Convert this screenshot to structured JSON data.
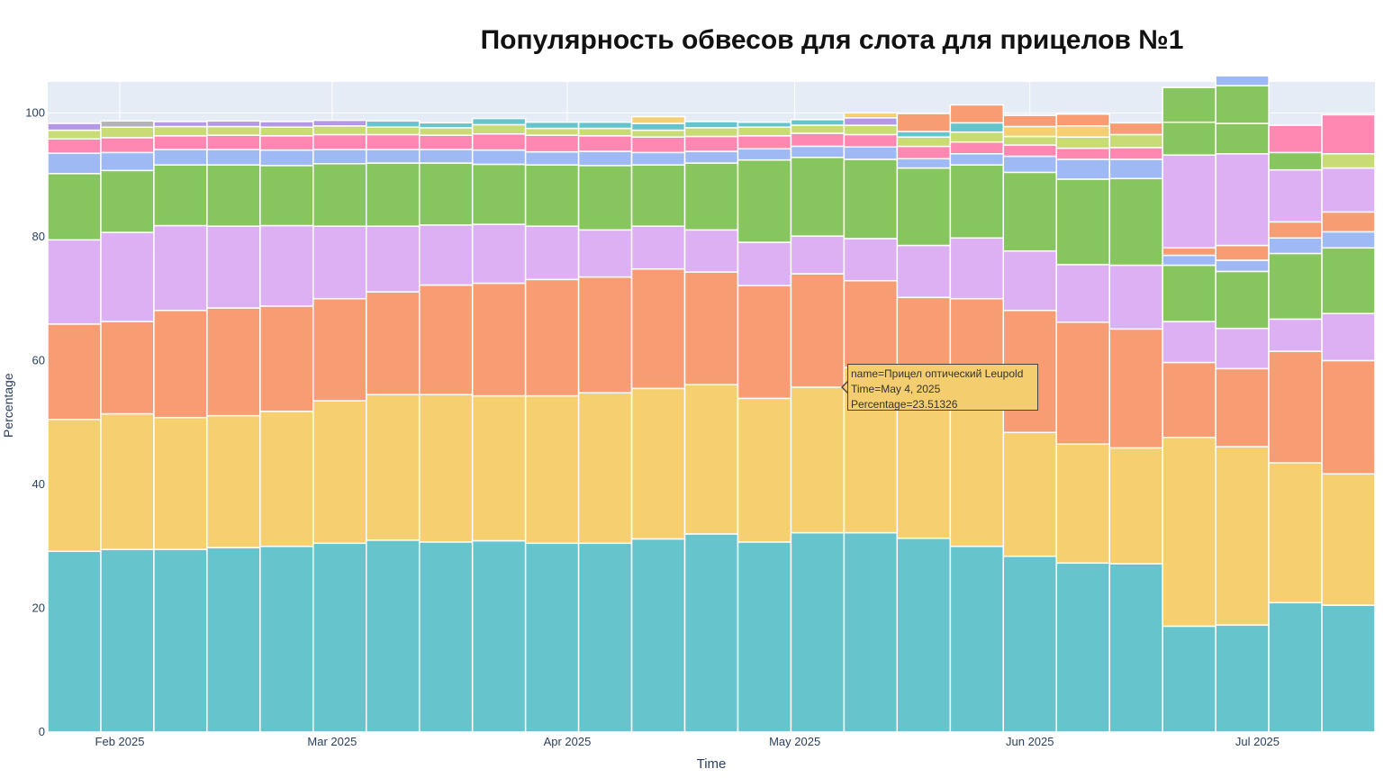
{
  "chart_data": {
    "type": "bar",
    "stacked": true,
    "title": "Популярность обвесов для слота для прицелов №1",
    "xlabel": "Time",
    "ylabel": "Percentage",
    "ylim": [
      0,
      105
    ],
    "yticks": [
      0,
      20,
      40,
      60,
      80,
      100
    ],
    "x": [
      "2025-01-26",
      "2025-02-02",
      "2025-02-09",
      "2025-02-16",
      "2025-02-23",
      "2025-03-02",
      "2025-03-09",
      "2025-03-16",
      "2025-03-23",
      "2025-03-30",
      "2025-04-06",
      "2025-04-13",
      "2025-04-20",
      "2025-04-27",
      "2025-05-04",
      "2025-05-11",
      "2025-05-18",
      "2025-05-25",
      "2025-06-01",
      "2025-06-08",
      "2025-06-15",
      "2025-06-22",
      "2025-06-29",
      "2025-07-06",
      "2025-07-13"
    ],
    "xticks": [
      {
        "date": "2025-02-01",
        "label": "Feb 2025"
      },
      {
        "date": "2025-03-01",
        "label": "Mar 2025"
      },
      {
        "date": "2025-04-01",
        "label": "Apr 2025"
      },
      {
        "date": "2025-05-01",
        "label": "May 2025"
      },
      {
        "date": "2025-06-01",
        "label": "Jun 2025"
      },
      {
        "date": "2025-07-01",
        "label": "Jul 2025"
      }
    ],
    "grid": true,
    "background": "#e5ecf6",
    "series": [
      {
        "color": "#66c5cc",
        "values": [
          29.2,
          29.5,
          29.5,
          29.8,
          30.0,
          30.5,
          31.0,
          30.7,
          30.9,
          30.5,
          30.5,
          31.2,
          32.0,
          30.7,
          32.2,
          32.2,
          31.3,
          30.0,
          28.4,
          27.3,
          27.2,
          17.1,
          17.3,
          20.9,
          20.5
        ]
      },
      {
        "color": "#f6cf71",
        "values": [
          21.3,
          21.9,
          21.3,
          21.3,
          21.8,
          23.0,
          23.5,
          23.8,
          23.4,
          23.8,
          24.3,
          24.3,
          24.1,
          23.2,
          23.51326,
          26.7,
          26.0,
          26.2,
          20.0,
          19.2,
          18.7,
          30.5,
          28.8,
          22.6,
          21.2
        ]
      },
      {
        "color": "#f89c74",
        "values": [
          15.4,
          14.9,
          17.3,
          17.4,
          17.0,
          16.5,
          16.6,
          17.7,
          18.2,
          18.8,
          18.7,
          19.3,
          18.2,
          18.2,
          18.3,
          14.0,
          12.9,
          13.8,
          19.7,
          19.7,
          19.2,
          12.1,
          12.6,
          18.0,
          18.3
        ]
      },
      {
        "color": "#dcb0f2",
        "values": [
          13.6,
          14.4,
          13.7,
          13.2,
          13.0,
          11.7,
          10.6,
          9.7,
          9.5,
          8.6,
          7.6,
          6.9,
          6.8,
          7.0,
          6.1,
          6.8,
          8.4,
          9.8,
          9.6,
          9.3,
          10.3,
          6.6,
          6.5,
          5.2,
          7.6
        ]
      },
      {
        "color": "#87c55f",
        "values": [
          10.7,
          10.0,
          9.8,
          9.9,
          9.7,
          10.1,
          10.2,
          10.0,
          9.7,
          9.9,
          10.4,
          9.9,
          10.8,
          13.3,
          12.7,
          12.8,
          12.5,
          11.8,
          12.7,
          13.8,
          14.0,
          9.1,
          9.2,
          10.6,
          10.6
        ]
      },
      {
        "color": "#9eb9f3",
        "values": [
          3.3,
          2.9,
          2.5,
          2.5,
          2.5,
          2.3,
          2.2,
          2.2,
          2.3,
          2.1,
          2.3,
          2.0,
          1.9,
          1.8,
          1.8,
          2.0,
          1.5,
          1.8,
          2.6,
          3.2,
          3.1,
          1.6,
          1.8,
          2.5,
          2.6
        ]
      },
      {
        "color": "#fe88b1",
        "values": [
          2.3,
          2.4,
          2.2,
          2.3,
          2.3,
          2.4,
          2.4,
          2.3,
          2.6,
          2.7,
          2.5,
          2.5,
          2.4,
          2.1,
          2.1,
          2.0,
          2.0,
          1.9,
          1.8,
          1.8,
          1.9,
          0,
          0,
          0,
          0
        ]
      },
      {
        "color": "#f89c74",
        "values": [
          0,
          0,
          0,
          0,
          0,
          0,
          0,
          0,
          0,
          0,
          0,
          0,
          0,
          0,
          0,
          0,
          0,
          0,
          0,
          0,
          0,
          1.2,
          2.4,
          2.6,
          3.2
        ]
      },
      {
        "color": "#dcb0f2",
        "values": [
          0,
          0,
          0,
          0,
          0,
          0,
          0,
          0,
          0,
          0,
          0,
          0,
          0,
          0,
          0,
          0,
          0,
          0,
          0,
          0,
          0,
          15.0,
          14.8,
          8.4,
          7.1
        ]
      },
      {
        "color": "#87c55f",
        "values": [
          0,
          0,
          0,
          0,
          0,
          0,
          0,
          0,
          0,
          0,
          0,
          0,
          0,
          0,
          0,
          0,
          0,
          0,
          0,
          0,
          0,
          5.3,
          4.9,
          2.8,
          0
        ]
      },
      {
        "color": "#c9db74",
        "values": [
          1.4,
          1.7,
          1.5,
          1.4,
          1.4,
          1.4,
          1.2,
          1.2,
          1.5,
          1.1,
          1.2,
          1.1,
          1.4,
          1.4,
          1.3,
          1.5,
          1.5,
          1.6,
          1.4,
          1.8,
          2.1,
          0,
          0,
          0,
          2.3
        ]
      },
      {
        "color": "#fe88b1",
        "values": [
          0,
          0,
          0,
          0,
          0,
          0,
          0,
          0,
          0,
          0,
          0,
          0,
          0,
          0,
          0,
          0,
          0,
          0,
          0,
          0,
          0,
          0,
          0,
          0,
          6.3
        ]
      },
      {
        "color": "#66c5cc",
        "values": [
          0,
          0,
          0,
          0,
          0,
          0,
          1.0,
          0.8,
          1.0,
          1.0,
          1.0,
          1.1,
          1.0,
          0.8,
          0.9,
          0,
          0.9,
          1.5,
          0,
          0,
          0,
          0,
          0,
          0,
          0
        ]
      },
      {
        "color": "#b497e7",
        "values": [
          1.1,
          0,
          0.8,
          0.9,
          0.9,
          0.9,
          0,
          0,
          0,
          0,
          0,
          0,
          0,
          0,
          0,
          1.2,
          0,
          0,
          0,
          0,
          0,
          0,
          0,
          0,
          0
        ]
      },
      {
        "color": "#b3b3b3",
        "values": [
          0,
          1.0,
          0,
          0,
          0,
          0,
          0,
          0,
          0,
          0,
          0,
          0,
          0,
          0,
          0,
          0,
          0,
          0,
          0,
          0,
          0,
          0,
          0,
          0,
          0
        ]
      },
      {
        "color": "#f6cf71",
        "values": [
          0,
          0,
          0,
          0,
          0,
          0,
          0,
          0,
          0,
          0,
          0,
          1.1,
          0,
          0,
          0,
          0.8,
          0,
          0,
          1.6,
          1.8,
          0,
          0,
          0,
          0,
          0
        ]
      },
      {
        "color": "#f89c74",
        "values": [
          0,
          0,
          0,
          0,
          0,
          0,
          0,
          0,
          0,
          0,
          0,
          0,
          0,
          0,
          0,
          0,
          2.9,
          2.9,
          1.8,
          1.9,
          1.9,
          0,
          0,
          0,
          0
        ]
      },
      {
        "color": "#87c55f",
        "values": [
          0,
          0,
          0,
          0,
          0,
          0,
          0,
          0,
          0,
          0,
          0,
          0,
          0,
          0,
          0,
          0,
          0,
          0,
          0,
          0,
          0,
          5.6,
          6.1,
          0,
          0
        ]
      },
      {
        "color": "#9eb9f3",
        "values": [
          0,
          0,
          0,
          0,
          0,
          0,
          0,
          0,
          0,
          0,
          0,
          0,
          0,
          0,
          0,
          0,
          0,
          0,
          0,
          0,
          0,
          0,
          1.6,
          0,
          0
        ]
      },
      {
        "color": "#fe88b1",
        "values": [
          0,
          0,
          0,
          0,
          0,
          0,
          0,
          0,
          0,
          0,
          0,
          0,
          0,
          0,
          0,
          0,
          0,
          0,
          0,
          0,
          0,
          0,
          0,
          4.4,
          0
        ]
      }
    ]
  },
  "tooltip": {
    "line1": "name=Прицел оптический Leupold",
    "line2": "Time=May 4, 2025",
    "line3": "Percentage=23.51326"
  }
}
